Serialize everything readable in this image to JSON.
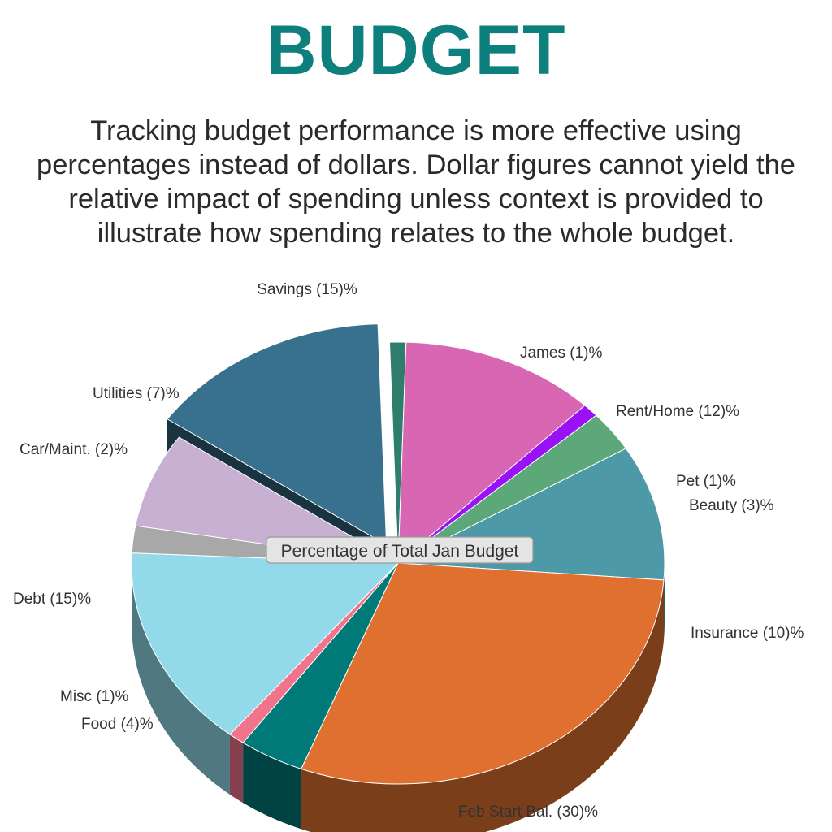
{
  "header": {
    "title": "BUDGET",
    "intro": "Tracking budget performance is more effective using percentages instead of dollars. Dollar figures cannot yield the relative impact of spending unless context is provided to illustrate how spending relates to the whole budget."
  },
  "chart_data": {
    "type": "pie",
    "style": "3d",
    "title": "Percentage of Total Jan Budget",
    "slices": [
      {
        "label": "Savings (15)%",
        "name": "Savings",
        "value": 15,
        "color": "#37718e",
        "exploded": true
      },
      {
        "label": "James (1)%",
        "name": "James",
        "value": 1,
        "color": "#2f7d6d"
      },
      {
        "label": "Rent/Home (12)%",
        "name": "Rent/Home",
        "value": 12,
        "color": "#d966b2"
      },
      {
        "label": "Pet (1)%",
        "name": "Pet",
        "value": 1,
        "color": "#9b11f5"
      },
      {
        "label": "Beauty (3)%",
        "name": "Beauty",
        "value": 3,
        "color": "#5ca878"
      },
      {
        "label": "Insurance (10)%",
        "name": "Insurance",
        "value": 10,
        "color": "#4e99a8"
      },
      {
        "label": "Feb Start Bal. (30)%",
        "name": "Feb Start Bal.",
        "value": 30,
        "color": "#e07030"
      },
      {
        "label": "Food (4)%",
        "name": "Food",
        "value": 4,
        "color": "#007a78"
      },
      {
        "label": "Misc (1)%",
        "name": "Misc",
        "value": 1,
        "color": "#f2738c"
      },
      {
        "label": "Debt (15)%",
        "name": "Debt",
        "value": 15,
        "color": "#92dae9"
      },
      {
        "label": "Car/Maint. (2)%",
        "name": "Car/Maint.",
        "value": 2,
        "color": "#a8a8a8"
      },
      {
        "label": "Utilities (7)%",
        "name": "Utilities",
        "value": 7,
        "color": "#c7b0d2"
      }
    ]
  }
}
